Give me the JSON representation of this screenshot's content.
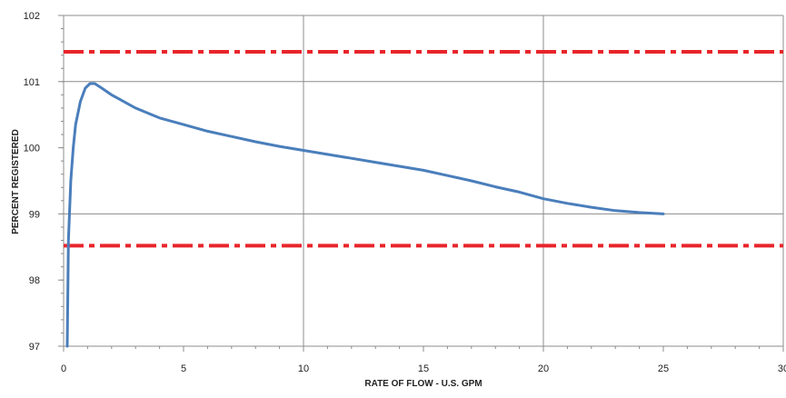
{
  "chart_data": {
    "type": "line",
    "title": "",
    "xlabel": "RATE OF FLOW - U.S. GPM",
    "ylabel": "PERCENT REGISTERED",
    "xlim": [
      0,
      30
    ],
    "ylim": [
      97,
      102
    ],
    "xticks": [
      0,
      5,
      10,
      15,
      20,
      25,
      30
    ],
    "yticks": [
      97,
      98,
      99,
      100,
      101,
      102
    ],
    "xtick_labels": [
      "0",
      "5",
      "10",
      "15",
      "20",
      "25",
      "30"
    ],
    "ytick_labels": [
      "97",
      "98",
      "99",
      "100",
      "101",
      "102"
    ],
    "grid": {
      "x_major": [
        10,
        20,
        30
      ],
      "y_major": [
        99,
        101,
        102
      ]
    },
    "legend": "none",
    "series": [
      {
        "color": "#4a7ebb",
        "style": "solid",
        "x": [
          0.15,
          0.2,
          0.3,
          0.4,
          0.5,
          0.7,
          0.9,
          1.1,
          1.3,
          1.6,
          2.0,
          3.0,
          4.0,
          5.0,
          6.0,
          7.0,
          8.0,
          9.0,
          10.0,
          11.0,
          12.0,
          13.0,
          14.0,
          15.0,
          16.0,
          17.0,
          18.0,
          19.0,
          20.0,
          21.0,
          22.0,
          23.0,
          24.0,
          25.0
        ],
        "y": [
          97.0,
          98.6,
          99.5,
          100.0,
          100.35,
          100.7,
          100.9,
          100.97,
          100.97,
          100.9,
          100.8,
          100.6,
          100.45,
          100.35,
          100.25,
          100.17,
          100.09,
          100.02,
          99.96,
          99.9,
          99.84,
          99.78,
          99.72,
          99.66,
          99.58,
          99.5,
          99.41,
          99.33,
          99.23,
          99.16,
          99.1,
          99.05,
          99.02,
          99.0
        ]
      }
    ],
    "reference_lines": [
      {
        "y": 101.45,
        "color": "#e8252b",
        "style": "dash-dot"
      },
      {
        "y": 98.52,
        "color": "#e8252b",
        "style": "dash-dot"
      }
    ]
  }
}
